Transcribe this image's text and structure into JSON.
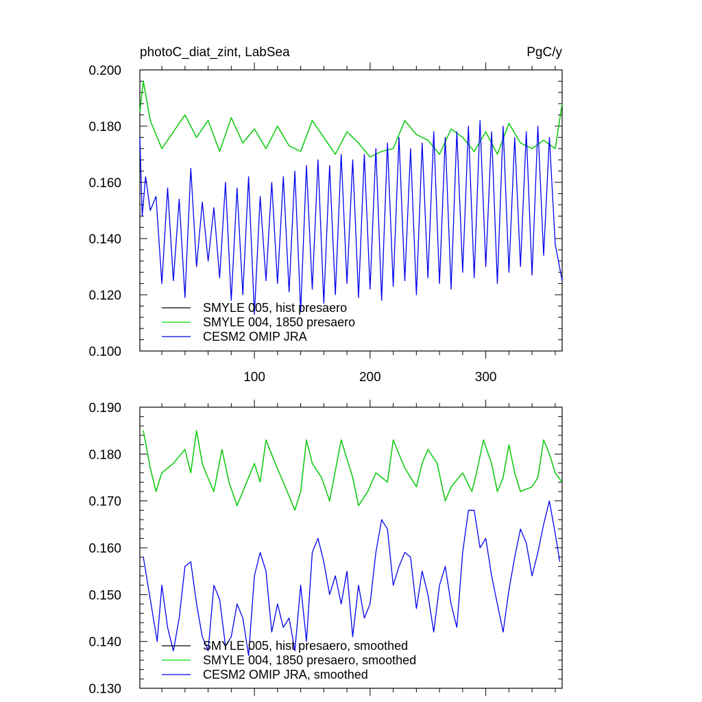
{
  "figure": {
    "title_left": "photoC_diat_zint, LabSea",
    "title_right": "PgC/y"
  },
  "chart_data": [
    {
      "type": "line",
      "panel": "top",
      "xlim": [
        1,
        366
      ],
      "ylim": [
        0.1,
        0.2
      ],
      "xticks": [
        100,
        200,
        300
      ],
      "yticks": [
        0.1,
        0.12,
        0.14,
        0.16,
        0.18,
        0.2
      ],
      "ytick_labels": [
        "0.100",
        "0.120",
        "0.140",
        "0.160",
        "0.180",
        "0.200"
      ],
      "xtick_labels": [
        "100",
        "200",
        "300"
      ],
      "legend_position": "bottom-left",
      "series": [
        {
          "name": "SMYLE 005, hist presaero",
          "color": "#000000",
          "x": [
            1,
            4,
            10,
            20,
            30,
            40,
            50,
            60,
            70,
            80,
            90,
            100,
            110,
            120,
            130,
            140,
            150,
            160,
            170,
            180,
            190,
            200,
            210,
            220,
            230,
            240,
            250,
            260,
            270,
            280,
            290,
            300,
            310,
            320,
            330,
            340,
            350,
            360,
            366
          ],
          "y": [
            0.185,
            0.196,
            0.182,
            0.172,
            0.178,
            0.184,
            0.176,
            0.182,
            0.171,
            0.183,
            0.174,
            0.179,
            0.172,
            0.18,
            0.173,
            0.171,
            0.182,
            0.176,
            0.17,
            0.178,
            0.174,
            0.169,
            0.171,
            0.172,
            0.182,
            0.177,
            0.175,
            0.17,
            0.179,
            0.176,
            0.171,
            0.178,
            0.17,
            0.181,
            0.174,
            0.172,
            0.175,
            0.172,
            0.188
          ]
        },
        {
          "name": "SMYLE 004, 1850 presaero",
          "color": "#00dd00",
          "x": [
            1,
            4,
            10,
            20,
            30,
            40,
            50,
            60,
            70,
            80,
            90,
            100,
            110,
            120,
            130,
            140,
            150,
            160,
            170,
            180,
            190,
            200,
            210,
            220,
            230,
            240,
            250,
            260,
            270,
            280,
            290,
            300,
            310,
            320,
            330,
            340,
            350,
            360,
            366
          ],
          "y": [
            0.185,
            0.196,
            0.182,
            0.172,
            0.178,
            0.184,
            0.176,
            0.182,
            0.171,
            0.183,
            0.174,
            0.179,
            0.172,
            0.18,
            0.173,
            0.171,
            0.182,
            0.176,
            0.17,
            0.178,
            0.174,
            0.169,
            0.171,
            0.172,
            0.182,
            0.177,
            0.175,
            0.17,
            0.179,
            0.176,
            0.171,
            0.178,
            0.17,
            0.181,
            0.174,
            0.172,
            0.175,
            0.172,
            0.188
          ]
        },
        {
          "name": "CESM2 OMIP JRA",
          "color": "#0000ee",
          "x": [
            1,
            3,
            6,
            10,
            15,
            20,
            25,
            30,
            35,
            40,
            45,
            50,
            55,
            60,
            65,
            70,
            75,
            80,
            85,
            90,
            95,
            100,
            105,
            110,
            115,
            120,
            125,
            130,
            135,
            140,
            145,
            150,
            155,
            160,
            165,
            170,
            175,
            180,
            185,
            190,
            195,
            200,
            205,
            210,
            215,
            220,
            225,
            230,
            235,
            240,
            245,
            250,
            255,
            260,
            265,
            270,
            275,
            280,
            285,
            290,
            295,
            300,
            305,
            310,
            315,
            320,
            325,
            330,
            335,
            340,
            345,
            350,
            355,
            360,
            366
          ],
          "y": [
            0.176,
            0.148,
            0.162,
            0.15,
            0.155,
            0.124,
            0.158,
            0.125,
            0.154,
            0.119,
            0.165,
            0.13,
            0.153,
            0.132,
            0.151,
            0.126,
            0.16,
            0.118,
            0.158,
            0.12,
            0.162,
            0.113,
            0.155,
            0.125,
            0.16,
            0.124,
            0.162,
            0.121,
            0.164,
            0.114,
            0.166,
            0.122,
            0.168,
            0.117,
            0.166,
            0.12,
            0.17,
            0.124,
            0.168,
            0.119,
            0.17,
            0.122,
            0.172,
            0.118,
            0.174,
            0.123,
            0.176,
            0.125,
            0.172,
            0.12,
            0.174,
            0.126,
            0.178,
            0.124,
            0.176,
            0.122,
            0.178,
            0.128,
            0.18,
            0.126,
            0.182,
            0.13,
            0.178,
            0.124,
            0.18,
            0.128,
            0.176,
            0.13,
            0.178,
            0.127,
            0.18,
            0.134,
            0.176,
            0.138,
            0.125
          ]
        }
      ]
    },
    {
      "type": "line",
      "panel": "bottom",
      "xlim": [
        1,
        366
      ],
      "ylim": [
        0.13,
        0.19
      ],
      "xticks": [
        100,
        200,
        300
      ],
      "yticks": [
        0.13,
        0.14,
        0.15,
        0.16,
        0.17,
        0.18,
        0.19
      ],
      "ytick_labels": [
        "0.130",
        "0.140",
        "0.150",
        "0.160",
        "0.170",
        "0.180",
        "0.190"
      ],
      "legend_position": "bottom-left",
      "series": [
        {
          "name": "SMYLE 005, hist presaero, smoothed",
          "color": "#000000",
          "x": [
            4,
            10,
            15,
            20,
            30,
            40,
            45,
            50,
            55,
            58,
            65,
            72,
            78,
            85,
            95,
            100,
            105,
            110,
            118,
            125,
            135,
            140,
            145,
            150,
            158,
            165,
            175,
            180,
            185,
            190,
            198,
            205,
            215,
            220,
            225,
            230,
            240,
            245,
            250,
            258,
            265,
            270,
            280,
            288,
            292,
            298,
            305,
            310,
            315,
            320,
            325,
            330,
            340,
            345,
            350,
            355,
            360,
            366
          ],
          "y": [
            0.185,
            0.177,
            0.172,
            0.176,
            0.178,
            0.181,
            0.176,
            0.185,
            0.178,
            0.176,
            0.172,
            0.181,
            0.174,
            0.169,
            0.175,
            0.178,
            0.174,
            0.183,
            0.178,
            0.174,
            0.168,
            0.172,
            0.183,
            0.178,
            0.175,
            0.17,
            0.183,
            0.179,
            0.175,
            0.169,
            0.172,
            0.176,
            0.174,
            0.183,
            0.18,
            0.177,
            0.173,
            0.178,
            0.181,
            0.178,
            0.17,
            0.173,
            0.176,
            0.172,
            0.176,
            0.183,
            0.178,
            0.172,
            0.175,
            0.182,
            0.176,
            0.172,
            0.173,
            0.175,
            0.183,
            0.18,
            0.176,
            0.174
          ]
        },
        {
          "name": "SMYLE 004, 1850 presaero, smoothed",
          "color": "#00dd00",
          "x": [
            4,
            10,
            15,
            20,
            30,
            40,
            45,
            50,
            55,
            58,
            65,
            72,
            78,
            85,
            95,
            100,
            105,
            110,
            118,
            125,
            135,
            140,
            145,
            150,
            158,
            165,
            175,
            180,
            185,
            190,
            198,
            205,
            215,
            220,
            225,
            230,
            240,
            245,
            250,
            258,
            265,
            270,
            280,
            288,
            292,
            298,
            305,
            310,
            315,
            320,
            325,
            330,
            340,
            345,
            350,
            355,
            360,
            366
          ],
          "y": [
            0.185,
            0.177,
            0.172,
            0.176,
            0.178,
            0.181,
            0.176,
            0.185,
            0.178,
            0.176,
            0.172,
            0.181,
            0.174,
            0.169,
            0.175,
            0.178,
            0.174,
            0.183,
            0.178,
            0.174,
            0.168,
            0.172,
            0.183,
            0.178,
            0.175,
            0.17,
            0.183,
            0.179,
            0.175,
            0.169,
            0.172,
            0.176,
            0.174,
            0.183,
            0.18,
            0.177,
            0.173,
            0.178,
            0.181,
            0.178,
            0.17,
            0.173,
            0.176,
            0.172,
            0.176,
            0.183,
            0.178,
            0.172,
            0.175,
            0.182,
            0.176,
            0.172,
            0.173,
            0.175,
            0.183,
            0.18,
            0.176,
            0.174
          ]
        },
        {
          "name": "CESM2 OMIP JRA, smoothed",
          "color": "#0000ee",
          "x": [
            4,
            8,
            12,
            16,
            20,
            25,
            30,
            35,
            40,
            45,
            50,
            55,
            60,
            65,
            70,
            75,
            80,
            85,
            90,
            95,
            100,
            105,
            110,
            115,
            120,
            125,
            130,
            135,
            140,
            145,
            150,
            155,
            160,
            165,
            170,
            175,
            180,
            185,
            190,
            195,
            200,
            205,
            210,
            215,
            220,
            225,
            230,
            235,
            240,
            245,
            250,
            255,
            260,
            265,
            270,
            275,
            280,
            285,
            290,
            295,
            300,
            305,
            310,
            315,
            320,
            325,
            330,
            335,
            340,
            345,
            350,
            355,
            360,
            364
          ],
          "y": [
            0.158,
            0.152,
            0.146,
            0.14,
            0.152,
            0.143,
            0.138,
            0.145,
            0.156,
            0.157,
            0.148,
            0.141,
            0.138,
            0.152,
            0.149,
            0.139,
            0.141,
            0.148,
            0.145,
            0.137,
            0.154,
            0.159,
            0.155,
            0.142,
            0.148,
            0.143,
            0.145,
            0.138,
            0.152,
            0.14,
            0.159,
            0.162,
            0.157,
            0.15,
            0.154,
            0.148,
            0.155,
            0.141,
            0.152,
            0.145,
            0.148,
            0.159,
            0.166,
            0.164,
            0.152,
            0.156,
            0.159,
            0.158,
            0.147,
            0.155,
            0.15,
            0.142,
            0.152,
            0.156,
            0.148,
            0.143,
            0.159,
            0.168,
            0.168,
            0.16,
            0.162,
            0.154,
            0.148,
            0.142,
            0.151,
            0.158,
            0.164,
            0.161,
            0.154,
            0.159,
            0.165,
            0.17,
            0.163,
            0.157
          ]
        }
      ]
    }
  ]
}
